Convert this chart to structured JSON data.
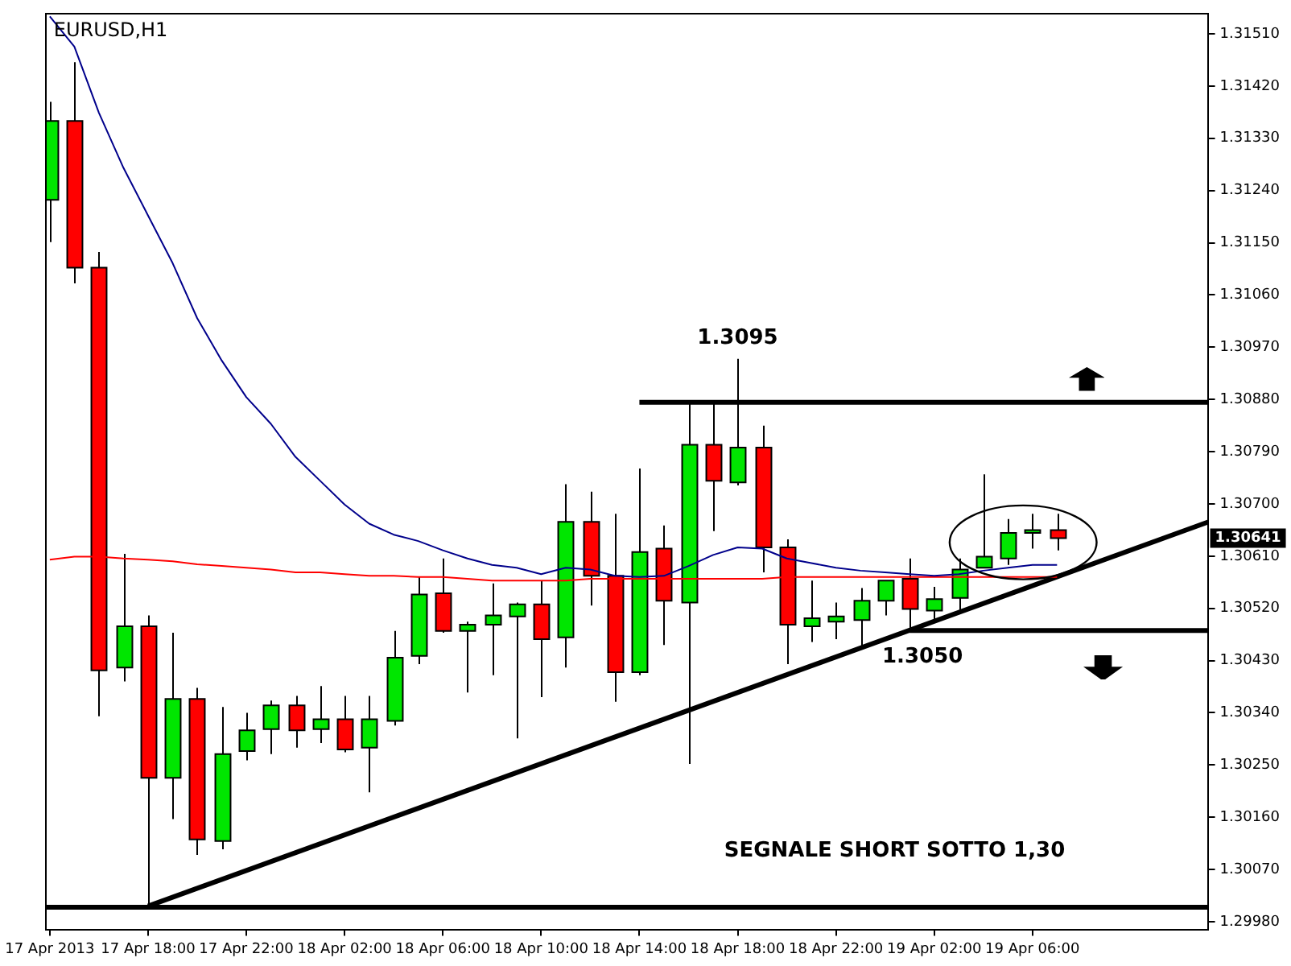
{
  "chart_data": {
    "type": "candlestick",
    "title": "EURUSD,H1",
    "x": [
      "2013-04-17T14:00",
      "2013-04-17T15:00",
      "2013-04-17T16:00",
      "2013-04-17T17:00",
      "2013-04-17T18:00",
      "2013-04-17T19:00",
      "2013-04-17T20:00",
      "2013-04-17T21:00",
      "2013-04-17T22:00",
      "2013-04-17T23:00",
      "2013-04-18T00:00",
      "2013-04-18T01:00",
      "2013-04-18T02:00",
      "2013-04-18T03:00",
      "2013-04-18T04:00",
      "2013-04-18T05:00",
      "2013-04-18T06:00",
      "2013-04-18T07:00",
      "2013-04-18T08:00",
      "2013-04-18T09:00",
      "2013-04-18T10:00",
      "2013-04-18T11:00",
      "2013-04-18T12:00",
      "2013-04-18T13:00",
      "2013-04-18T14:00",
      "2013-04-18T15:00",
      "2013-04-18T16:00",
      "2013-04-18T17:00",
      "2013-04-18T18:00",
      "2013-04-18T19:00",
      "2013-04-18T20:00",
      "2013-04-18T21:00",
      "2013-04-18T22:00",
      "2013-04-18T23:00",
      "2013-04-19T00:00",
      "2013-04-19T01:00",
      "2013-04-19T02:00",
      "2013-04-19T03:00",
      "2013-04-19T04:00",
      "2013-04-19T05:00",
      "2013-04-19T06:00",
      "2013-04-19T07:00"
    ],
    "ohlc": [
      [
        1.31224,
        1.31393,
        1.31151,
        1.3136
      ],
      [
        1.3136,
        1.31461,
        1.3108,
        1.31107
      ],
      [
        1.31107,
        1.31134,
        1.30334,
        1.30413
      ],
      [
        1.30418,
        1.30614,
        1.30394,
        1.30489
      ],
      [
        1.30489,
        1.30508,
        1.30007,
        1.30228
      ],
      [
        1.30228,
        1.30478,
        1.30157,
        1.30364
      ],
      [
        1.30364,
        1.30383,
        1.30095,
        1.30122
      ],
      [
        1.30119,
        1.3035,
        1.30105,
        1.30269
      ],
      [
        1.30274,
        1.3034,
        1.30258,
        1.3031
      ],
      [
        1.30312,
        1.30361,
        1.30269,
        1.30353
      ],
      [
        1.30353,
        1.30369,
        1.3028,
        1.3031
      ],
      [
        1.30312,
        1.30386,
        1.30288,
        1.30329
      ],
      [
        1.30329,
        1.30369,
        1.30272,
        1.30277
      ],
      [
        1.3028,
        1.30369,
        1.30203,
        1.30329
      ],
      [
        1.30326,
        1.30481,
        1.30318,
        1.30435
      ],
      [
        1.30438,
        1.30574,
        1.30424,
        1.30544
      ],
      [
        1.30546,
        1.30606,
        1.30478,
        1.30481
      ],
      [
        1.30481,
        1.30497,
        1.30375,
        1.30492
      ],
      [
        1.30492,
        1.30563,
        1.30405,
        1.30508
      ],
      [
        1.30506,
        1.3053,
        1.30296,
        1.30527
      ],
      [
        1.30527,
        1.30568,
        1.30367,
        1.30467
      ],
      [
        1.3047,
        1.30734,
        1.30418,
        1.30669
      ],
      [
        1.30669,
        1.30721,
        1.30525,
        1.30576
      ],
      [
        1.30576,
        1.30683,
        1.30359,
        1.3041
      ],
      [
        1.3041,
        1.30761,
        1.30405,
        1.30617
      ],
      [
        1.30623,
        1.30663,
        1.30457,
        1.30533
      ],
      [
        1.3053,
        1.30873,
        1.30252,
        1.30802
      ],
      [
        1.30802,
        1.30873,
        1.30653,
        1.3074
      ],
      [
        1.30737,
        1.3095,
        1.30732,
        1.30797
      ],
      [
        1.30797,
        1.30835,
        1.30582,
        1.30625
      ],
      [
        1.30625,
        1.30639,
        1.30424,
        1.30492
      ],
      [
        1.30489,
        1.30568,
        1.30462,
        1.30503
      ],
      [
        1.30497,
        1.3053,
        1.30467,
        1.30506
      ],
      [
        1.305,
        1.30555,
        1.30454,
        1.30533
      ],
      [
        1.30533,
        1.30568,
        1.30508,
        1.30568
      ],
      [
        1.30571,
        1.30606,
        1.30484,
        1.30519
      ],
      [
        1.30516,
        1.30557,
        1.30495,
        1.30536
      ],
      [
        1.30538,
        1.30606,
        1.30516,
        1.30587
      ],
      [
        1.3059,
        1.30751,
        1.3059,
        1.30609
      ],
      [
        1.30606,
        1.30674,
        1.30595,
        1.3065
      ],
      [
        1.3065,
        1.30683,
        1.30623,
        1.30655
      ],
      [
        1.30655,
        1.30683,
        1.3062,
        1.30641
      ]
    ],
    "colors": [
      "#00e600",
      "#ff0000",
      "#ff0000",
      "#00e600",
      "#ff0000",
      "#00e600",
      "#ff0000",
      "#00e600",
      "#00e600",
      "#00e600",
      "#ff0000",
      "#00e600",
      "#ff0000",
      "#00e600",
      "#00e600",
      "#00e600",
      "#ff0000",
      "#00e600",
      "#00e600",
      "#00e600",
      "#ff0000",
      "#00e600",
      "#ff0000",
      "#ff0000",
      "#00e600",
      "#ff0000",
      "#00e600",
      "#ff0000",
      "#00e600",
      "#ff0000",
      "#ff0000",
      "#00e600",
      "#00e600",
      "#00e600",
      "#00e600",
      "#ff0000",
      "#00e600",
      "#00e600",
      "#00e600",
      "#00e600",
      "#00e600",
      "#ff0000"
    ],
    "series": [
      {
        "type": "line",
        "color": "#00008b",
        "values": [
          1.3154,
          1.31488,
          1.31374,
          1.31279,
          1.31197,
          1.31115,
          1.3102,
          1.30947,
          1.30884,
          1.30838,
          1.30781,
          1.3074,
          1.30699,
          1.30666,
          1.30647,
          1.30636,
          1.3062,
          1.30606,
          1.30595,
          1.3059,
          1.30579,
          1.3059,
          1.30587,
          1.30576,
          1.30574,
          1.30576,
          1.30593,
          1.30612,
          1.30625,
          1.30623,
          1.30606,
          1.30598,
          1.3059,
          1.30585,
          1.30582,
          1.30579,
          1.30576,
          1.30579,
          1.30585,
          1.3059,
          1.30595,
          1.30595
        ]
      },
      {
        "type": "line",
        "color": "#ff0000",
        "values": [
          1.30604,
          1.30609,
          1.30609,
          1.30606,
          1.30604,
          1.30601,
          1.30596,
          1.30593,
          1.3059,
          1.30587,
          1.30582,
          1.30582,
          1.30579,
          1.30576,
          1.30576,
          1.30574,
          1.30574,
          1.30571,
          1.30568,
          1.30568,
          1.30568,
          1.30568,
          1.30571,
          1.30571,
          1.30571,
          1.30571,
          1.30571,
          1.30571,
          1.30571,
          1.30571,
          1.30574,
          1.30574,
          1.30574,
          1.30574,
          1.30574,
          1.30574,
          1.30574,
          1.30574,
          1.30574,
          1.30574,
          1.30574,
          1.30574
        ]
      },
      {
        "type": "line",
        "color": "#000000",
        "x": [
          "2013-04-17T18:00",
          "2013-04-19T13:10"
        ],
        "values": [
          1.30007,
          1.30669
        ]
      },
      {
        "type": "line",
        "color": "#000000",
        "x": [
          "2013-04-18T14:00",
          "2013-04-19T13:10"
        ],
        "values": [
          1.30875,
          1.30875
        ]
      },
      {
        "type": "line",
        "color": "#000000",
        "x": [
          "2013-04-19T01:00",
          "2013-04-19T13:10"
        ],
        "values": [
          1.30482,
          1.30482
        ]
      }
    ],
    "ref_lines": [
      {
        "axis": "y",
        "value": 1.30005,
        "color": "#000000"
      }
    ],
    "annotations": [
      {
        "text": "1.3095",
        "x": "2013-04-18T18:00",
        "y": 1.3095
      },
      {
        "text": "1.3050",
        "x": "2013-04-19T01:00",
        "y": 1.30482
      },
      "1.30641",
      "SEGNALE SHORT SOTTO 1,30"
    ],
    "xlim": [
      "2013-04-17T13:50",
      "2013-04-19T13:10"
    ],
    "xticks": [
      {
        "value": "2013-04-17T14:00",
        "label": "17 Apr 2013"
      },
      {
        "value": "2013-04-17T18:00",
        "label": "17 Apr 18:00"
      },
      {
        "value": "2013-04-17T22:00",
        "label": "17 Apr 22:00"
      },
      {
        "value": "2013-04-18T02:00",
        "label": "18 Apr 02:00"
      },
      {
        "value": "2013-04-18T06:00",
        "label": "18 Apr 06:00"
      },
      {
        "value": "2013-04-18T10:00",
        "label": "18 Apr 10:00"
      },
      {
        "value": "2013-04-18T14:00",
        "label": "18 Apr 14:00"
      },
      {
        "value": "2013-04-18T18:00",
        "label": "18 Apr 18:00"
      },
      {
        "value": "2013-04-18T22:00",
        "label": "18 Apr 22:00"
      },
      {
        "value": "2013-04-19T02:00",
        "label": "19 Apr 02:00"
      },
      {
        "value": "2013-04-19T06:00",
        "label": "19 Apr 06:00"
      }
    ],
    "ylim": [
      1.29967,
      1.31545
    ],
    "yticks": [
      {
        "value": 1.2998,
        "label": "1.29980"
      },
      {
        "value": 1.3007,
        "label": "1.30070"
      },
      {
        "value": 1.3016,
        "label": "1.30160"
      },
      {
        "value": 1.3025,
        "label": "1.30250"
      },
      {
        "value": 1.3034,
        "label": "1.30340"
      },
      {
        "value": 1.3043,
        "label": "1.30430"
      },
      {
        "value": 1.3052,
        "label": "1.30520"
      },
      {
        "value": 1.3061,
        "label": "1.30610"
      },
      {
        "value": 1.307,
        "label": "1.30700"
      },
      {
        "value": 1.3079,
        "label": "1.30790"
      },
      {
        "value": 1.3088,
        "label": "1.30880"
      },
      {
        "value": 1.3097,
        "label": "1.30970"
      },
      {
        "value": 1.3106,
        "label": "1.31060"
      },
      {
        "value": 1.3115,
        "label": "1.31150"
      },
      {
        "value": 1.3124,
        "label": "1.31240"
      },
      {
        "value": 1.3133,
        "label": "1.31330"
      },
      {
        "value": 1.3142,
        "label": "1.31420"
      },
      {
        "value": 1.3151,
        "label": "1.31510"
      }
    ],
    "grid": false,
    "legend": false,
    "marker": "none"
  }
}
